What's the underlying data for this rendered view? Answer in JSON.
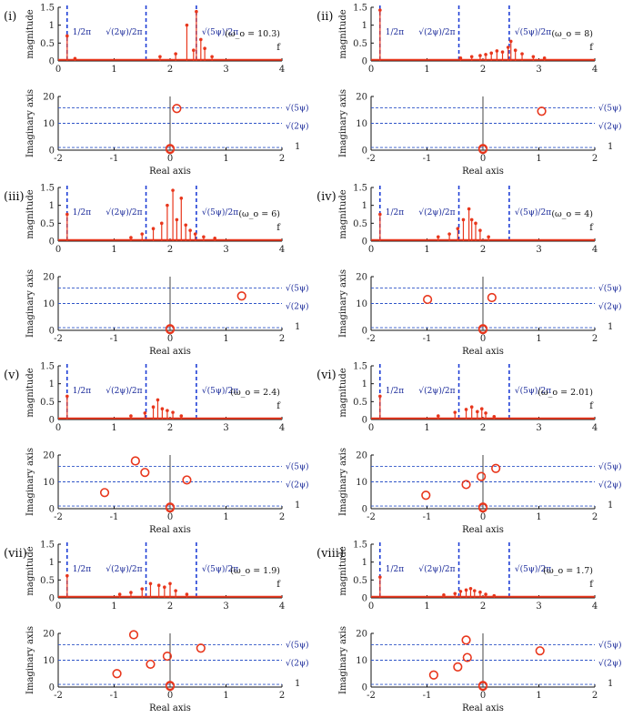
{
  "figure": {
    "colors": {
      "data": "#e8361c",
      "ref_line": "#1f3fd6",
      "ref_dashed": "#2f55c8",
      "axis": "#111111",
      "vertical_zero": "#444444"
    },
    "spectrum_axes": {
      "ylabel": "magnitude",
      "xvar": "f",
      "xlim": [
        0,
        4
      ],
      "ylim": [
        0,
        1.5
      ],
      "xticks": [
        "0",
        "1",
        "2",
        "3",
        "4"
      ],
      "yticks": [
        "0",
        "0.5",
        "1",
        "1.5"
      ]
    },
    "complex_axes": {
      "ylabel": "Imaginary axis",
      "xlabel": "Real axis",
      "xlim": [
        -2,
        2
      ],
      "ylim": [
        0,
        20
      ],
      "xticks": [
        "-2",
        "-1",
        "0",
        "1",
        "2"
      ],
      "yticks": [
        "0",
        "10",
        "20"
      ]
    },
    "ref_labels": {
      "one_over_2pi": "1/2π",
      "sqrt2psi_over_2pi": "√(2ψ)/2π",
      "sqrt5psi_over_2pi": "√(5ψ)/2π",
      "sqrt5psi": "√(5ψ)",
      "sqrt2psi": "√(2ψ)",
      "one": "1"
    },
    "ref_freqs": [
      0.159,
      1.57,
      2.47
    ],
    "ref_levels": [
      15.8,
      10.0,
      1.0
    ]
  },
  "chart_data": [
    {
      "panel": "(i)",
      "omega_label": "(ω_o = 10.3)",
      "type": "stem+scatter",
      "spectrum": {
        "x": [
          0.16,
          0.3,
          1.82,
          2.1,
          2.3,
          2.42,
          2.47,
          2.55,
          2.62,
          2.75
        ],
        "y": [
          0.7,
          0.07,
          0.12,
          0.2,
          1.0,
          0.3,
          1.38,
          0.6,
          0.35,
          0.12
        ]
      },
      "roots": {
        "re": [
          0.0,
          0.0,
          0.12
        ],
        "im": [
          0.3,
          0.6,
          15.5
        ]
      }
    },
    {
      "panel": "(ii)",
      "omega_label": "(ω_o = 8)",
      "type": "stem+scatter",
      "spectrum": {
        "x": [
          0.16,
          1.6,
          1.8,
          1.95,
          2.05,
          2.15,
          2.25,
          2.35,
          2.45,
          2.5,
          2.58,
          2.7,
          2.9,
          3.1
        ],
        "y": [
          1.42,
          0.08,
          0.12,
          0.15,
          0.18,
          0.22,
          0.28,
          0.25,
          0.38,
          0.55,
          0.3,
          0.2,
          0.12,
          0.08
        ]
      },
      "roots": {
        "re": [
          0.0,
          0.0,
          1.05
        ],
        "im": [
          0.3,
          0.6,
          14.5
        ]
      }
    },
    {
      "panel": "(iii)",
      "omega_label": "(ω_o = 6)",
      "type": "stem+scatter",
      "spectrum": {
        "x": [
          0.16,
          1.3,
          1.5,
          1.7,
          1.85,
          1.95,
          2.05,
          2.12,
          2.2,
          2.28,
          2.36,
          2.45,
          2.6,
          2.8
        ],
        "y": [
          0.75,
          0.1,
          0.2,
          0.35,
          0.5,
          1.0,
          1.42,
          0.6,
          1.2,
          0.45,
          0.3,
          0.2,
          0.12,
          0.08
        ]
      },
      "roots": {
        "re": [
          0.0,
          0.0,
          1.28
        ],
        "im": [
          0.3,
          0.6,
          12.8
        ]
      }
    },
    {
      "panel": "(iv)",
      "omega_label": "(ω_o = 4)",
      "type": "stem+scatter",
      "spectrum": {
        "x": [
          0.16,
          1.2,
          1.4,
          1.55,
          1.65,
          1.75,
          1.8,
          1.87,
          1.95,
          2.1
        ],
        "y": [
          0.75,
          0.12,
          0.2,
          0.35,
          0.6,
          0.9,
          0.6,
          0.5,
          0.3,
          0.12
        ]
      },
      "roots": {
        "re": [
          0.0,
          0.0,
          -0.99,
          0.16
        ],
        "im": [
          0.3,
          0.6,
          11.5,
          12.2
        ]
      }
    },
    {
      "panel": "(v)",
      "omega_label": "(ω_o = 2.4)",
      "type": "stem+scatter",
      "spectrum": {
        "x": [
          0.16,
          1.3,
          1.55,
          1.7,
          1.78,
          1.86,
          1.95,
          2.05,
          2.2
        ],
        "y": [
          0.65,
          0.1,
          0.18,
          0.35,
          0.55,
          0.3,
          0.25,
          0.2,
          0.1
        ]
      },
      "roots": {
        "re": [
          0.0,
          0.0,
          -1.17,
          -0.62,
          -0.45,
          0.3
        ],
        "im": [
          0.3,
          0.6,
          6.0,
          17.8,
          13.5,
          10.7
        ]
      }
    },
    {
      "panel": "(vi)",
      "omega_label": "(ω_o = 2.01)",
      "type": "stem+scatter",
      "spectrum": {
        "x": [
          0.16,
          1.2,
          1.5,
          1.7,
          1.8,
          1.9,
          1.98,
          2.05,
          2.2
        ],
        "y": [
          0.65,
          0.1,
          0.2,
          0.28,
          0.35,
          0.22,
          0.3,
          0.18,
          0.08
        ]
      },
      "roots": {
        "re": [
          0.0,
          0.0,
          -1.02,
          -0.3,
          -0.03,
          0.23
        ],
        "im": [
          0.3,
          0.6,
          5.0,
          9.0,
          12.0,
          15.0
        ]
      }
    },
    {
      "panel": "(vii)",
      "omega_label": "(ω_o = 1.9)",
      "type": "stem+scatter",
      "spectrum": {
        "x": [
          0.16,
          1.1,
          1.3,
          1.5,
          1.65,
          1.8,
          1.9,
          2.0,
          2.1,
          2.3
        ],
        "y": [
          0.62,
          0.1,
          0.15,
          0.25,
          0.4,
          0.35,
          0.3,
          0.4,
          0.2,
          0.1
        ]
      },
      "roots": {
        "re": [
          0.0,
          0.0,
          -0.95,
          -0.65,
          -0.35,
          -0.05,
          0.55
        ],
        "im": [
          0.3,
          0.6,
          5.0,
          19.5,
          8.5,
          11.5,
          14.5
        ]
      }
    },
    {
      "panel": "(viii)",
      "omega_label": "(ω_o = 1.7)",
      "type": "stem+scatter",
      "spectrum": {
        "x": [
          0.16,
          1.3,
          1.5,
          1.6,
          1.7,
          1.78,
          1.85,
          1.95,
          2.05,
          2.2
        ],
        "y": [
          0.58,
          0.08,
          0.12,
          0.18,
          0.22,
          0.26,
          0.2,
          0.16,
          0.1,
          0.06
        ]
      },
      "roots": {
        "re": [
          0.0,
          0.0,
          -0.88,
          -0.45,
          -0.3,
          -0.28,
          1.02
        ],
        "im": [
          0.3,
          0.6,
          4.5,
          7.5,
          17.5,
          11.0,
          13.5
        ]
      }
    }
  ]
}
